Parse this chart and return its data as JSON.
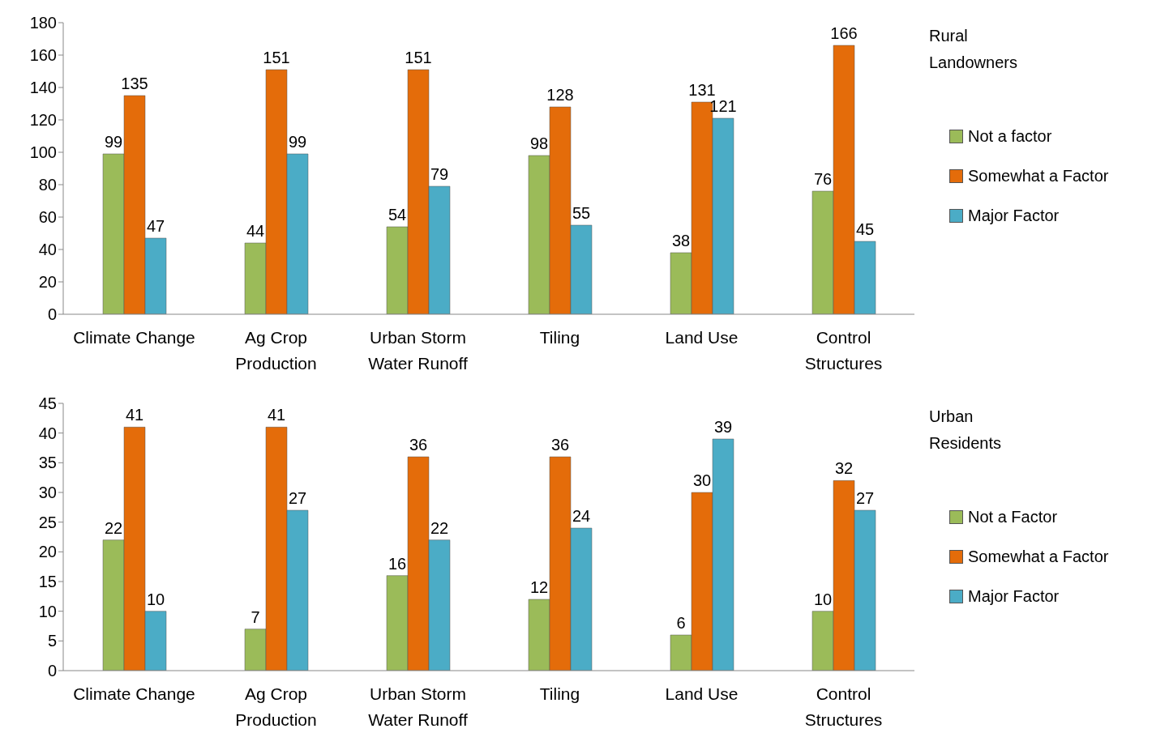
{
  "chart_data": [
    {
      "type": "bar",
      "legend_title": "Rural Landowners",
      "categories": [
        "Climate Change",
        "Ag Crop Production",
        "Urban Storm Water Runoff",
        "Tiling",
        "Land Use",
        "Control Structures"
      ],
      "series": [
        {
          "name": "Not a factor",
          "color": "#9bbb59",
          "values": [
            99,
            44,
            54,
            98,
            38,
            76
          ]
        },
        {
          "name": "Somewhat a Factor",
          "color": "#e46c0a",
          "values": [
            135,
            151,
            151,
            128,
            131,
            166
          ]
        },
        {
          "name": "Major Factor",
          "color": "#4bacc6",
          "values": [
            47,
            99,
            79,
            55,
            121,
            45
          ]
        }
      ],
      "ylim": [
        0,
        180
      ],
      "yticks": [
        0,
        20,
        40,
        60,
        80,
        100,
        120,
        140,
        160,
        180
      ],
      "data_labels": true,
      "legend": "right"
    },
    {
      "type": "bar",
      "legend_title": "Urban Residents",
      "categories": [
        "Climate Change",
        "Ag Crop Production",
        "Urban Storm Water Runoff",
        "Tiling",
        "Land Use",
        "Control Structures"
      ],
      "series": [
        {
          "name": "Not a Factor",
          "color": "#9bbb59",
          "values": [
            22,
            7,
            16,
            12,
            6,
            10
          ]
        },
        {
          "name": "Somewhat a Factor",
          "color": "#e46c0a",
          "values": [
            41,
            41,
            36,
            36,
            30,
            32
          ]
        },
        {
          "name": "Major Factor",
          "color": "#4bacc6",
          "values": [
            10,
            27,
            22,
            24,
            39,
            27
          ]
        }
      ],
      "ylim": [
        0,
        45
      ],
      "yticks": [
        0,
        5,
        10,
        15,
        20,
        25,
        30,
        35,
        40,
        45
      ],
      "data_labels": true,
      "legend": "right"
    }
  ]
}
